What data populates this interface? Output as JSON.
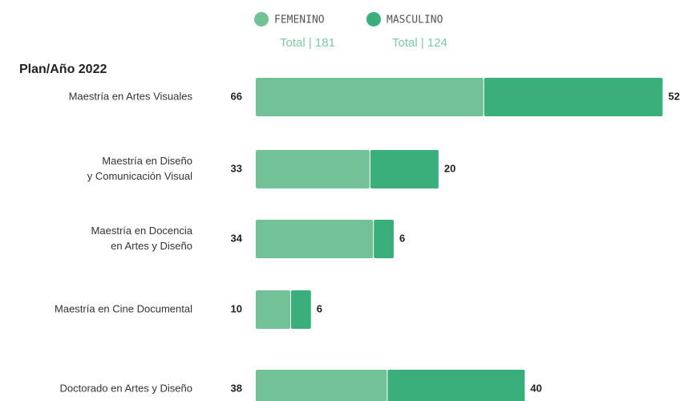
{
  "chart_data": {
    "type": "stacked-bar-horizontal",
    "title": "Plan/Año 2022",
    "categories": [
      [
        "Maestría en Artes Visuales"
      ],
      [
        "Maestría en Diseño",
        "y Comunicación Visual"
      ],
      [
        "Maestría en Docencia",
        "en Artes y Diseño"
      ],
      [
        "Maestría en Cine Documental"
      ],
      [
        "Doctorado en Artes y Diseño"
      ]
    ],
    "series": [
      {
        "name": "FEMENINO",
        "color": "#72c197",
        "total_label": "Total | 181",
        "values": [
          66,
          33,
          34,
          10,
          38
        ]
      },
      {
        "name": "MASCULINO",
        "color": "#3aae7b",
        "total_label": "Total | 124",
        "values": [
          52,
          20,
          6,
          6,
          40
        ]
      }
    ]
  }
}
